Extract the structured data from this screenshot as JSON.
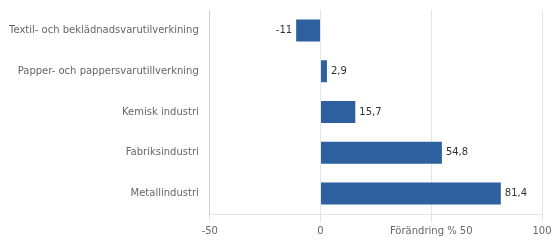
{
  "chart_data": {
    "type": "bar",
    "orientation": "horizontal",
    "categories": [
      "Textil- och beklädnadsvarutilverkining",
      "Papper- och pappersvarutillverkning",
      "Kemisk industri",
      "Fabriksindustri",
      "Metallindustri"
    ],
    "values": [
      -11,
      2.9,
      15.7,
      54.8,
      81.4
    ],
    "value_labels": [
      "-11",
      "2,9",
      "15,7",
      "54,8",
      "81,4"
    ],
    "data_labels": true,
    "color": "#2E5F9E",
    "xlim": [
      -50,
      100
    ],
    "xticks": [
      -50,
      0,
      {
        "value": 50,
        "label": "Förändring % 50"
      },
      100
    ],
    "grid": true
  }
}
